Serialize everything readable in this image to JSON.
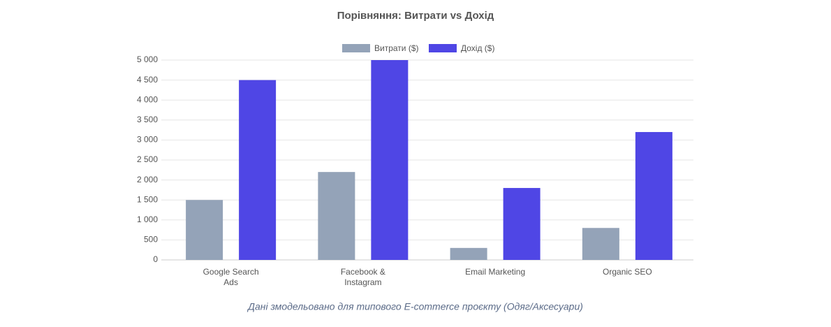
{
  "chart_data": {
    "type": "bar",
    "title": "Порівняння: Витрати vs Дохід",
    "categories": [
      [
        "Google Search",
        "Ads"
      ],
      [
        "Facebook &",
        "Instagram"
      ],
      [
        "Email Marketing"
      ],
      [
        "Organic SEO"
      ]
    ],
    "series": [
      {
        "name": "Витрати ($)",
        "color": "#94a3b8",
        "values": [
          1500,
          2200,
          300,
          800
        ]
      },
      {
        "name": "Дохід ($)",
        "color": "#4f46e5",
        "values": [
          4500,
          5000,
          1800,
          3200
        ]
      }
    ],
    "ylim": [
      0,
      5000
    ],
    "yticks": [
      0,
      500,
      {
        "value": 1000,
        "label": "1 000"
      },
      {
        "value": 1500,
        "label": "1 500"
      },
      {
        "value": 2000,
        "label": "2 000"
      },
      {
        "value": 2500,
        "label": "2 500"
      },
      {
        "value": 3000,
        "label": "3 000"
      },
      {
        "value": 3500,
        "label": "3 500"
      },
      {
        "value": 4000,
        "label": "4 000"
      },
      {
        "value": 4500,
        "label": "4 500"
      },
      {
        "value": 5000,
        "label": "5 000"
      }
    ],
    "grid": true,
    "legend": "top",
    "note": "Дані змодельовано для типового E-commerce проєкту (Одяг/Аксесуари)"
  }
}
